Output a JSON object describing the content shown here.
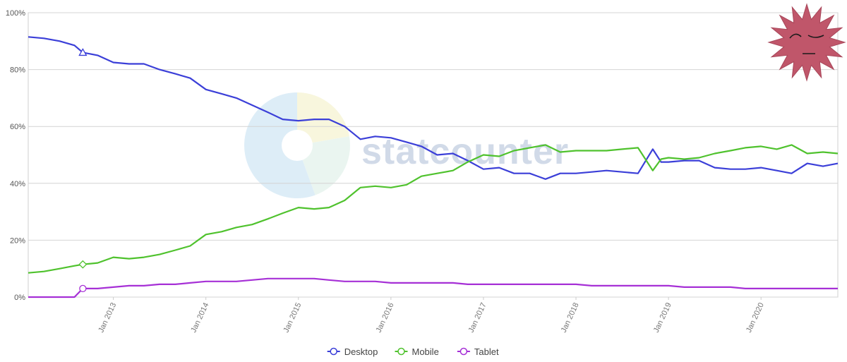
{
  "chart_data": {
    "type": "line",
    "title": "",
    "xlabel": "",
    "ylabel": "",
    "ylim": [
      0,
      100
    ],
    "y_ticks": [
      "0%",
      "20%",
      "40%",
      "60%",
      "80%",
      "100%"
    ],
    "x_ticks": [
      {
        "label": "Jan 2013",
        "x": 2013.0
      },
      {
        "label": "Jan 2014",
        "x": 2014.0
      },
      {
        "label": "Jan 2015",
        "x": 2015.0
      },
      {
        "label": "Jan 2016",
        "x": 2016.0
      },
      {
        "label": "Jan 2017",
        "x": 2017.0
      },
      {
        "label": "Jan 2018",
        "x": 2018.0
      },
      {
        "label": "Jan 2019",
        "x": 2019.0
      },
      {
        "label": "Jan 2020",
        "x": 2020.0
      }
    ],
    "xlim": [
      2012.08,
      2020.83
    ],
    "grid": "horizontal",
    "legend_position": "bottom-center",
    "watermark": "statcounter",
    "series": [
      {
        "name": "Desktop",
        "color": "#3b3fd8",
        "marker": "triangle",
        "marker_x": 2012.67,
        "points": [
          [
            2012.08,
            91.5
          ],
          [
            2012.25,
            91
          ],
          [
            2012.42,
            90
          ],
          [
            2012.58,
            88.5
          ],
          [
            2012.67,
            86
          ],
          [
            2012.83,
            85
          ],
          [
            2013.0,
            82.5
          ],
          [
            2013.17,
            82
          ],
          [
            2013.33,
            82
          ],
          [
            2013.5,
            80
          ],
          [
            2013.67,
            78.5
          ],
          [
            2013.83,
            77
          ],
          [
            2014.0,
            73
          ],
          [
            2014.17,
            71.5
          ],
          [
            2014.33,
            70
          ],
          [
            2014.5,
            67.5
          ],
          [
            2014.67,
            65
          ],
          [
            2014.83,
            62.5
          ],
          [
            2015.0,
            62
          ],
          [
            2015.17,
            62.5
          ],
          [
            2015.33,
            62.5
          ],
          [
            2015.5,
            60
          ],
          [
            2015.67,
            55.5
          ],
          [
            2015.83,
            56.5
          ],
          [
            2016.0,
            56
          ],
          [
            2016.17,
            54.5
          ],
          [
            2016.33,
            53
          ],
          [
            2016.5,
            50
          ],
          [
            2016.67,
            50.5
          ],
          [
            2016.83,
            48
          ],
          [
            2017.0,
            45
          ],
          [
            2017.17,
            45.5
          ],
          [
            2017.33,
            43.5
          ],
          [
            2017.5,
            43.5
          ],
          [
            2017.67,
            41.5
          ],
          [
            2017.83,
            43.5
          ],
          [
            2018.0,
            43.5
          ],
          [
            2018.17,
            44
          ],
          [
            2018.33,
            44.5
          ],
          [
            2018.5,
            44
          ],
          [
            2018.67,
            43.5
          ],
          [
            2018.83,
            52
          ],
          [
            2018.92,
            47.5
          ],
          [
            2019.0,
            47.5
          ],
          [
            2019.17,
            48
          ],
          [
            2019.33,
            48
          ],
          [
            2019.5,
            45.5
          ],
          [
            2019.67,
            45
          ],
          [
            2019.83,
            45
          ],
          [
            2020.0,
            45.5
          ],
          [
            2020.17,
            44.5
          ],
          [
            2020.33,
            43.5
          ],
          [
            2020.5,
            47
          ],
          [
            2020.67,
            46
          ],
          [
            2020.83,
            47
          ]
        ]
      },
      {
        "name": "Mobile",
        "color": "#4fc22d",
        "marker": "diamond",
        "marker_x": 2012.67,
        "points": [
          [
            2012.08,
            8.5
          ],
          [
            2012.25,
            9
          ],
          [
            2012.42,
            10
          ],
          [
            2012.58,
            11
          ],
          [
            2012.67,
            11.5
          ],
          [
            2012.83,
            12
          ],
          [
            2013.0,
            14
          ],
          [
            2013.17,
            13.5
          ],
          [
            2013.33,
            14
          ],
          [
            2013.5,
            15
          ],
          [
            2013.67,
            16.5
          ],
          [
            2013.83,
            18
          ],
          [
            2014.0,
            22
          ],
          [
            2014.17,
            23
          ],
          [
            2014.33,
            24.5
          ],
          [
            2014.5,
            25.5
          ],
          [
            2014.67,
            27.5
          ],
          [
            2014.83,
            29.5
          ],
          [
            2015.0,
            31.5
          ],
          [
            2015.17,
            31
          ],
          [
            2015.33,
            31.5
          ],
          [
            2015.5,
            34
          ],
          [
            2015.67,
            38.5
          ],
          [
            2015.83,
            39
          ],
          [
            2016.0,
            38.5
          ],
          [
            2016.17,
            39.5
          ],
          [
            2016.33,
            42.5
          ],
          [
            2016.5,
            43.5
          ],
          [
            2016.67,
            44.5
          ],
          [
            2016.83,
            47.5
          ],
          [
            2017.0,
            50
          ],
          [
            2017.17,
            49.5
          ],
          [
            2017.33,
            51.5
          ],
          [
            2017.5,
            52.5
          ],
          [
            2017.67,
            53.5
          ],
          [
            2017.83,
            51
          ],
          [
            2018.0,
            51.5
          ],
          [
            2018.17,
            51.5
          ],
          [
            2018.33,
            51.5
          ],
          [
            2018.5,
            52
          ],
          [
            2018.67,
            52.5
          ],
          [
            2018.83,
            44.5
          ],
          [
            2018.92,
            48.5
          ],
          [
            2019.0,
            49
          ],
          [
            2019.17,
            48.5
          ],
          [
            2019.33,
            49
          ],
          [
            2019.5,
            50.5
          ],
          [
            2019.67,
            51.5
          ],
          [
            2019.83,
            52.5
          ],
          [
            2020.0,
            53
          ],
          [
            2020.17,
            52
          ],
          [
            2020.33,
            53.5
          ],
          [
            2020.5,
            50.5
          ],
          [
            2020.67,
            51
          ],
          [
            2020.83,
            50.5
          ]
        ]
      },
      {
        "name": "Tablet",
        "color": "#a630d6",
        "marker": "circle",
        "marker_x": 2012.67,
        "points": [
          [
            2012.08,
            0
          ],
          [
            2012.25,
            0
          ],
          [
            2012.42,
            0
          ],
          [
            2012.58,
            0
          ],
          [
            2012.67,
            3
          ],
          [
            2012.83,
            3
          ],
          [
            2013.0,
            3.5
          ],
          [
            2013.17,
            4
          ],
          [
            2013.33,
            4
          ],
          [
            2013.5,
            4.5
          ],
          [
            2013.67,
            4.5
          ],
          [
            2013.83,
            5
          ],
          [
            2014.0,
            5.5
          ],
          [
            2014.17,
            5.5
          ],
          [
            2014.33,
            5.5
          ],
          [
            2014.5,
            6
          ],
          [
            2014.67,
            6.5
          ],
          [
            2014.83,
            6.5
          ],
          [
            2015.0,
            6.5
          ],
          [
            2015.17,
            6.5
          ],
          [
            2015.33,
            6
          ],
          [
            2015.5,
            5.5
          ],
          [
            2015.67,
            5.5
          ],
          [
            2015.83,
            5.5
          ],
          [
            2016.0,
            5
          ],
          [
            2016.17,
            5
          ],
          [
            2016.33,
            5
          ],
          [
            2016.5,
            5
          ],
          [
            2016.67,
            5
          ],
          [
            2016.83,
            4.5
          ],
          [
            2017.0,
            4.5
          ],
          [
            2017.17,
            4.5
          ],
          [
            2017.33,
            4.5
          ],
          [
            2017.5,
            4.5
          ],
          [
            2017.67,
            4.5
          ],
          [
            2017.83,
            4.5
          ],
          [
            2018.0,
            4.5
          ],
          [
            2018.17,
            4
          ],
          [
            2018.33,
            4
          ],
          [
            2018.5,
            4
          ],
          [
            2018.67,
            4
          ],
          [
            2018.83,
            4
          ],
          [
            2018.92,
            4
          ],
          [
            2019.0,
            4
          ],
          [
            2019.17,
            3.5
          ],
          [
            2019.33,
            3.5
          ],
          [
            2019.5,
            3.5
          ],
          [
            2019.67,
            3.5
          ],
          [
            2019.83,
            3
          ],
          [
            2020.0,
            3
          ],
          [
            2020.17,
            3
          ],
          [
            2020.33,
            3
          ],
          [
            2020.5,
            3
          ],
          [
            2020.67,
            3
          ],
          [
            2020.83,
            3
          ]
        ]
      }
    ]
  },
  "overlay": {
    "sticker_color": "#c0566a",
    "sticker_name": "angry-spiky-face-sticker"
  }
}
